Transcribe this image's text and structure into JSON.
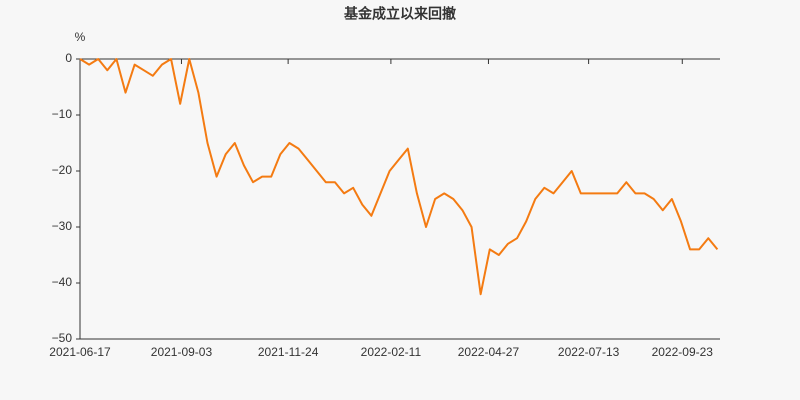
{
  "chart_data": {
    "type": "line",
    "title": "基金成立以来回撤",
    "y_unit": "%",
    "x": [
      "2021-06-17",
      "2021-06-24",
      "2021-07-01",
      "2021-07-08",
      "2021-07-15",
      "2021-07-22",
      "2021-07-29",
      "2021-08-05",
      "2021-08-12",
      "2021-08-19",
      "2021-08-26",
      "2021-09-02",
      "2021-09-09",
      "2021-09-16",
      "2021-09-23",
      "2021-09-30",
      "2021-10-07",
      "2021-10-14",
      "2021-10-21",
      "2021-10-28",
      "2021-11-04",
      "2021-11-11",
      "2021-11-18",
      "2021-11-25",
      "2021-12-02",
      "2021-12-09",
      "2021-12-16",
      "2021-12-23",
      "2021-12-30",
      "2022-01-06",
      "2022-01-13",
      "2022-01-20",
      "2022-01-27",
      "2022-02-03",
      "2022-02-10",
      "2022-02-17",
      "2022-02-24",
      "2022-03-03",
      "2022-03-10",
      "2022-03-17",
      "2022-03-24",
      "2022-03-31",
      "2022-04-07",
      "2022-04-14",
      "2022-04-21",
      "2022-04-28",
      "2022-05-05",
      "2022-05-12",
      "2022-05-19",
      "2022-05-26",
      "2022-06-02",
      "2022-06-09",
      "2022-06-16",
      "2022-06-23",
      "2022-06-30",
      "2022-07-07",
      "2022-07-14",
      "2022-07-21",
      "2022-07-28",
      "2022-08-04",
      "2022-08-11",
      "2022-08-18",
      "2022-08-25",
      "2022-09-01",
      "2022-09-08",
      "2022-09-15",
      "2022-09-22",
      "2022-09-29",
      "2022-10-06",
      "2022-10-13",
      "2022-10-20"
    ],
    "series": [
      {
        "color": "#f47b12",
        "values": [
          0,
          -1,
          0,
          -2,
          0,
          -6,
          -1,
          -2,
          -3,
          -1,
          0,
          -8,
          0,
          -6,
          -15,
          -21,
          -17,
          -15,
          -19,
          -22,
          -21,
          -21,
          -17,
          -15,
          -16,
          -18,
          -20,
          -22,
          -22,
          -24,
          -23,
          -26,
          -28,
          -24,
          -20,
          -18,
          -16,
          -24,
          -30,
          -25,
          -24,
          -25,
          -27,
          -30,
          -42,
          -34,
          -35,
          -33,
          -32,
          -29,
          -25,
          -23,
          -24,
          -22,
          -20,
          -24,
          -24,
          -24,
          -24,
          -24,
          -22,
          -24,
          -24,
          -25,
          -27,
          -25,
          -29,
          -34,
          -34,
          -32,
          -34
        ]
      }
    ],
    "xlim": [
      "2021-06-17",
      "2022-10-22"
    ],
    "xticks": [
      "2021-06-17",
      "2021-09-03",
      "2021-11-24",
      "2022-02-11",
      "2022-04-27",
      "2022-07-13",
      "2022-09-23"
    ],
    "ylim": [
      -50,
      0
    ],
    "yticks": [
      {
        "value": 0,
        "label": "0"
      },
      {
        "value": -10,
        "label": "−10"
      },
      {
        "value": -20,
        "label": "−20"
      },
      {
        "value": -30,
        "label": "−30"
      },
      {
        "value": -40,
        "label": "−40"
      },
      {
        "value": -50,
        "label": "−50"
      }
    ],
    "grid": false
  }
}
